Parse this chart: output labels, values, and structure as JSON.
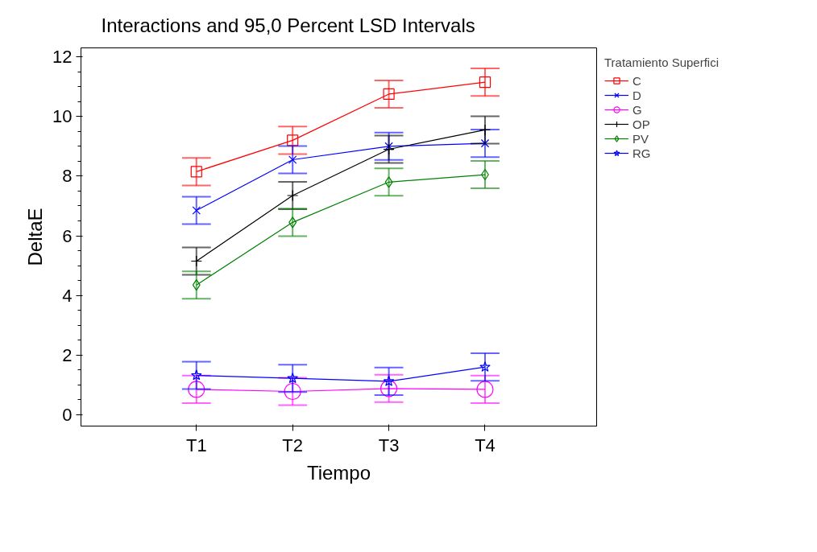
{
  "chart_data": {
    "type": "line",
    "title": "Interactions and 95,0 Percent LSD Intervals",
    "xlabel": "Tiempo",
    "ylabel": "DeltaE",
    "legend_title": "Tratamiento Superfici",
    "categories": [
      "T1",
      "T2",
      "T3",
      "T4"
    ],
    "series": [
      {
        "name": "C",
        "color": "#ff0000",
        "marker": "square",
        "values": [
          8.15,
          9.2,
          10.75,
          11.15
        ],
        "errors": [
          0.46,
          0.46,
          0.46,
          0.46
        ]
      },
      {
        "name": "D",
        "color": "#0000ff",
        "marker": "x",
        "values": [
          6.85,
          8.55,
          9.0,
          9.1
        ],
        "errors": [
          0.46,
          0.46,
          0.46,
          0.46
        ]
      },
      {
        "name": "G",
        "color": "#ff00ff",
        "marker": "circle",
        "values": [
          0.85,
          0.78,
          0.88,
          0.85
        ],
        "errors": [
          0.46,
          0.46,
          0.46,
          0.46
        ]
      },
      {
        "name": "OP",
        "color": "#000000",
        "marker": "cross",
        "values": [
          5.15,
          7.35,
          8.9,
          9.55
        ],
        "errors": [
          0.46,
          0.46,
          0.46,
          0.46
        ]
      },
      {
        "name": "PV",
        "color": "#008000",
        "marker": "diamond",
        "values": [
          4.35,
          6.45,
          7.8,
          8.05
        ],
        "errors": [
          0.46,
          0.46,
          0.46,
          0.46
        ]
      },
      {
        "name": "RG",
        "color": "#0000ff",
        "marker": "star",
        "values": [
          1.32,
          1.22,
          1.12,
          1.6
        ],
        "errors": [
          0.46,
          0.46,
          0.46,
          0.46
        ]
      }
    ],
    "ylim": [
      -0.38,
      12.3
    ],
    "yticks": [
      0,
      2,
      4,
      6,
      8,
      10,
      12
    ],
    "grid": false,
    "legend": "top right"
  }
}
